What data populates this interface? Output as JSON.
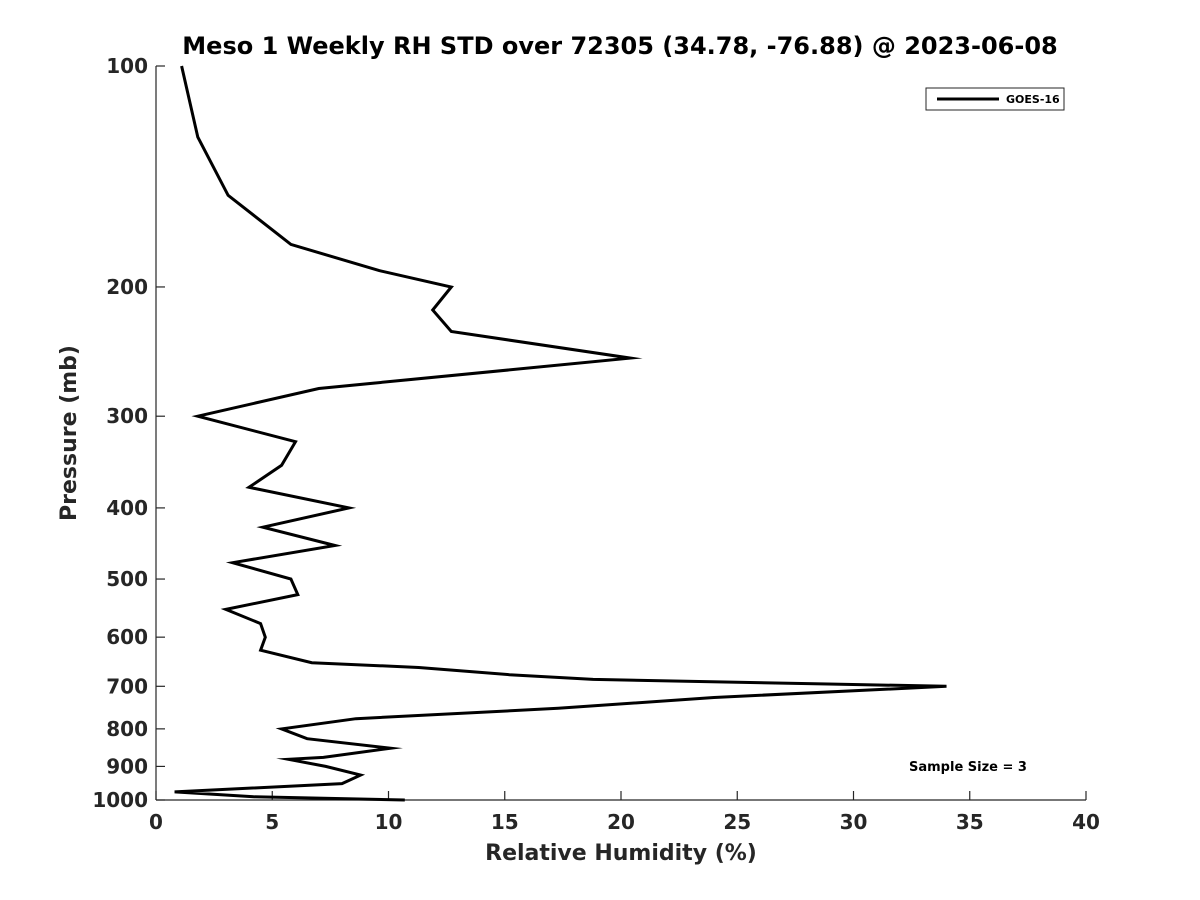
{
  "chart_data": {
    "type": "line",
    "title": "Meso 1 Weekly RH STD over 72305 (34.78, -76.88) @ 2023-06-08",
    "xlabel": "Relative Humidity (%)",
    "ylabel": "Pressure (mb)",
    "xlim": [
      0,
      40
    ],
    "ylim": [
      100,
      1000
    ],
    "y_scale": "log",
    "y_reversed": true,
    "x_ticks": [
      "0",
      "5",
      "10",
      "15",
      "20",
      "25",
      "30",
      "35",
      "40"
    ],
    "y_ticks": [
      "100",
      "200",
      "300",
      "400",
      "500",
      "600",
      "700",
      "800",
      "900",
      "1000"
    ],
    "x_tick_values": [
      0,
      5,
      10,
      15,
      20,
      25,
      30,
      35,
      40
    ],
    "y_tick_values": [
      100,
      200,
      300,
      400,
      500,
      600,
      700,
      800,
      900,
      1000
    ],
    "grid": false,
    "legend": {
      "position": "top-right",
      "entries": [
        "GOES-16"
      ]
    },
    "annotation": "Sample Size = 3",
    "series": [
      {
        "name": "GOES-16",
        "color": "#000000",
        "points": [
          [
            1.1,
            100
          ],
          [
            1.8,
            125
          ],
          [
            3.1,
            150
          ],
          [
            5.8,
            175
          ],
          [
            9.6,
            190
          ],
          [
            12.7,
            200
          ],
          [
            11.9,
            215
          ],
          [
            12.7,
            230
          ],
          [
            20.4,
            250
          ],
          [
            7.0,
            275
          ],
          [
            1.8,
            300
          ],
          [
            6.0,
            325
          ],
          [
            5.4,
            350
          ],
          [
            4.0,
            375
          ],
          [
            8.3,
            400
          ],
          [
            4.6,
            425
          ],
          [
            7.7,
            450
          ],
          [
            3.3,
            475
          ],
          [
            5.8,
            500
          ],
          [
            6.1,
            525
          ],
          [
            3.0,
            550
          ],
          [
            4.5,
            575
          ],
          [
            4.7,
            600
          ],
          [
            4.5,
            625
          ],
          [
            6.7,
            650
          ],
          [
            11.3,
            660
          ],
          [
            15.2,
            675
          ],
          [
            18.8,
            685
          ],
          [
            28.9,
            695
          ],
          [
            34.0,
            700
          ],
          [
            24.0,
            725
          ],
          [
            17.3,
            750
          ],
          [
            8.6,
            775
          ],
          [
            5.4,
            800
          ],
          [
            6.5,
            825
          ],
          [
            10.1,
            850
          ],
          [
            7.2,
            875
          ],
          [
            5.7,
            880
          ],
          [
            7.3,
            900
          ],
          [
            8.8,
            925
          ],
          [
            8.0,
            950
          ],
          [
            0.8,
            975
          ],
          [
            4.2,
            990
          ],
          [
            10.7,
            1000
          ]
        ]
      }
    ]
  }
}
